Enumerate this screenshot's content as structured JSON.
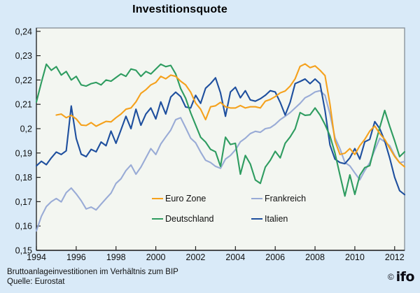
{
  "colors": {
    "background": "#d9eaf8",
    "plot_background": "#f3f6f1",
    "plot_border": "#8b949c",
    "axis": "#222222",
    "text": "#111111"
  },
  "footer": {
    "footnote": "Bruttoanlageinvestitionen im Verhältnis zum BIP",
    "source": "Quelle: Eurostat",
    "logo_copyright": "©",
    "logo_text": "ifo"
  },
  "chart_data": {
    "type": "line",
    "title": "Investitionsquote",
    "subtitle": "",
    "xlabel": "",
    "ylabel": "",
    "grid": false,
    "legend_position": "inside-bottom-center",
    "x_axis": {
      "range": [
        1994,
        2012.5
      ],
      "ticks": [
        1994,
        1996,
        1998,
        2000,
        2002,
        2004,
        2006,
        2008,
        2010,
        2012
      ],
      "tick_labels": [
        "1994",
        "1996",
        "1998",
        "2000",
        "2002",
        "2004",
        "2006",
        "2008",
        "2010",
        "2012"
      ]
    },
    "y_axis": {
      "range": [
        0.15,
        0.24
      ],
      "ticks": [
        0.15,
        0.16,
        0.17,
        0.18,
        0.19,
        0.2,
        0.21,
        0.22,
        0.23,
        0.24
      ],
      "tick_labels": [
        "0,15",
        "0,16",
        "0,17",
        "0,18",
        "0,19",
        "0,2",
        "0,21",
        "0,22",
        "0,23",
        "0,24"
      ]
    },
    "x_unit": "year, quarterly data",
    "series": [
      {
        "name": "Euro Zone",
        "color": "#f5a11c",
        "start": 1995.0,
        "step": 0.25,
        "values": [
          0.2056,
          0.206,
          0.2045,
          0.2055,
          0.204,
          0.2015,
          0.2013,
          0.2025,
          0.201,
          0.202,
          0.203,
          0.2028,
          0.2045,
          0.206,
          0.208,
          0.2085,
          0.211,
          0.2145,
          0.216,
          0.218,
          0.219,
          0.2215,
          0.2205,
          0.222,
          0.2215,
          0.2195,
          0.218,
          0.215,
          0.2105,
          0.208,
          0.2037,
          0.209,
          0.2094,
          0.2108,
          0.209,
          0.2085,
          0.2085,
          0.2095,
          0.2085,
          0.209,
          0.209,
          0.2085,
          0.2113,
          0.212,
          0.2132,
          0.2147,
          0.2155,
          0.2175,
          0.2205,
          0.2256,
          0.2266,
          0.2251,
          0.2258,
          0.224,
          0.2218,
          0.21,
          0.195,
          0.1894,
          0.1899,
          0.1918,
          0.1894,
          0.193,
          0.1956,
          0.199,
          0.2011,
          0.198,
          0.1956,
          0.192,
          0.1886,
          0.186,
          0.1843
        ]
      },
      {
        "name": "Frankreich",
        "color": "#99abd6",
        "start": 1994.0,
        "step": 0.25,
        "values": [
          0.158,
          0.164,
          0.168,
          0.17,
          0.1713,
          0.1699,
          0.1737,
          0.1756,
          0.1732,
          0.1704,
          0.167,
          0.1678,
          0.1666,
          0.169,
          0.1713,
          0.1735,
          0.1775,
          0.1794,
          0.1828,
          0.1851,
          0.1813,
          0.1842,
          0.188,
          0.1918,
          0.1894,
          0.1937,
          0.1966,
          0.1994,
          0.2037,
          0.2045,
          0.2004,
          0.1961,
          0.1942,
          0.1904,
          0.187,
          0.1861,
          0.1845,
          0.1837,
          0.1875,
          0.189,
          0.1913,
          0.1946,
          0.1961,
          0.198,
          0.1989,
          0.1985,
          0.2,
          0.2004,
          0.2018,
          0.2037,
          0.2051,
          0.2066,
          0.2085,
          0.2104,
          0.2127,
          0.2137,
          0.2151,
          0.2156,
          0.2137,
          0.206,
          0.1963,
          0.1918,
          0.1861,
          0.1847,
          0.1818,
          0.179,
          0.1828,
          0.186,
          0.1913,
          0.196,
          0.1946,
          0.193,
          0.189,
          0.186,
          0.1865
        ]
      },
      {
        "name": "Deutschland",
        "color": "#2e9c60",
        "start": 1994.0,
        "step": 0.25,
        "values": [
          0.211,
          0.219,
          0.2265,
          0.224,
          0.2255,
          0.222,
          0.2235,
          0.22,
          0.2215,
          0.218,
          0.2175,
          0.2185,
          0.219,
          0.218,
          0.22,
          0.2195,
          0.221,
          0.2225,
          0.2215,
          0.2245,
          0.224,
          0.2215,
          0.2235,
          0.2225,
          0.2245,
          0.2265,
          0.2255,
          0.226,
          0.2225,
          0.2165,
          0.2125,
          0.2065,
          0.2015,
          0.1965,
          0.1945,
          0.1915,
          0.1905,
          0.1845,
          0.1965,
          0.1935,
          0.194,
          0.1813,
          0.189,
          0.1855,
          0.1789,
          0.1775,
          0.1842,
          0.187,
          0.1907,
          0.188,
          0.194,
          0.1966,
          0.1999,
          0.2066,
          0.2055,
          0.2057,
          0.2085,
          0.2056,
          0.2017,
          0.197,
          0.19,
          0.181,
          0.1723,
          0.181,
          0.173,
          0.1808,
          0.184,
          0.1848,
          0.193,
          0.2005,
          0.2075,
          0.201,
          0.195,
          0.1885,
          0.1905
        ]
      },
      {
        "name": "Italien",
        "color": "#1e4f9e",
        "start": 1994.0,
        "step": 0.25,
        "values": [
          0.1847,
          0.1866,
          0.1852,
          0.188,
          0.1904,
          0.1894,
          0.1909,
          0.2093,
          0.196,
          0.1895,
          0.1885,
          0.1915,
          0.1905,
          0.1945,
          0.193,
          0.199,
          0.194,
          0.1995,
          0.2051,
          0.2,
          0.208,
          0.2014,
          0.206,
          0.2085,
          0.204,
          0.211,
          0.206,
          0.213,
          0.215,
          0.2132,
          0.2089,
          0.2085,
          0.2137,
          0.2104,
          0.2166,
          0.2185,
          0.2209,
          0.2147,
          0.2051,
          0.2151,
          0.217,
          0.2127,
          0.2156,
          0.2118,
          0.2113,
          0.2123,
          0.2137,
          0.2156,
          0.2151,
          0.2108,
          0.2056,
          0.2108,
          0.2185,
          0.2194,
          0.2204,
          0.2185,
          0.2204,
          0.2185,
          0.2075,
          0.1933,
          0.1875,
          0.1861,
          0.1856,
          0.188,
          0.1918,
          0.1875,
          0.1946,
          0.1956,
          0.2029,
          0.2,
          0.195,
          0.188,
          0.18,
          0.1745,
          0.1729
        ]
      }
    ]
  }
}
